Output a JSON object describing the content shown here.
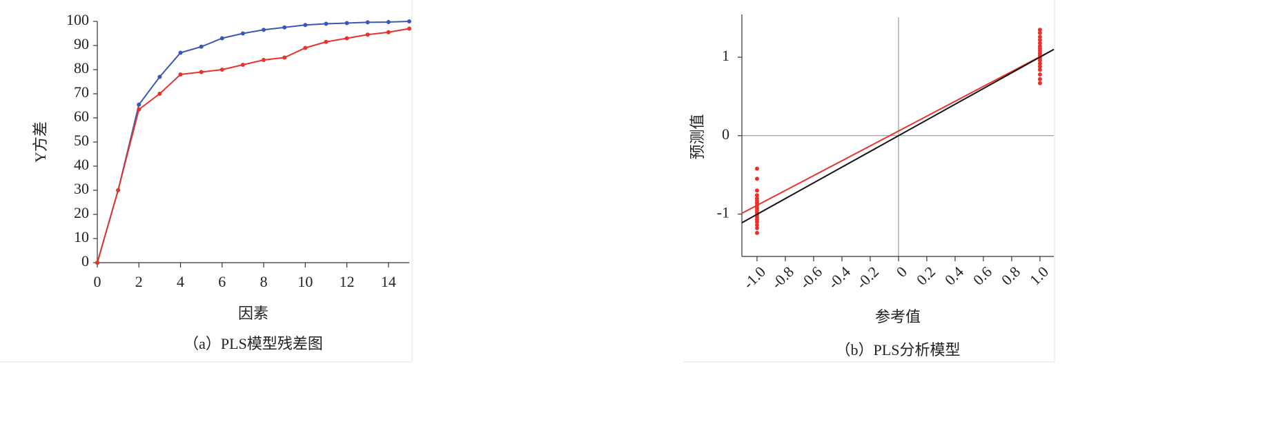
{
  "chart_data": [
    {
      "type": "line",
      "x": [
        0,
        1,
        2,
        3,
        4,
        5,
        6,
        7,
        8,
        9,
        10,
        11,
        12,
        13,
        14,
        15
      ],
      "series": [
        {
          "color": "#3a56b8",
          "values": [
            0,
            30,
            65.5,
            77,
            87,
            89.5,
            93,
            95,
            96.5,
            97.5,
            98.5,
            99,
            99.3,
            99.6,
            99.7,
            100
          ]
        },
        {
          "color": "#e8322b",
          "values": [
            0,
            30,
            63.5,
            70,
            78,
            79,
            80,
            82,
            84,
            85,
            89,
            91.5,
            93,
            94.5,
            95.5,
            97
          ]
        }
      ],
      "xlim": [
        0,
        15
      ],
      "xticks": [
        0,
        2,
        4,
        6,
        8,
        10,
        12,
        14
      ],
      "ylim": [
        0,
        100
      ],
      "yticks": [
        0,
        10,
        20,
        30,
        40,
        50,
        60,
        70,
        80,
        90,
        100
      ],
      "x_label": "因素",
      "y_label": "Y方差",
      "caption": "（a）PLS模型残差图"
    },
    {
      "type": "scatter",
      "series": [
        {
          "color": "#e8322b",
          "x": [
            -1,
            -1,
            -1,
            -1,
            -1,
            -1,
            -1,
            -1,
            -1,
            -1,
            -1,
            -1,
            -1,
            -1,
            -1,
            -1,
            -1,
            -1,
            1,
            1,
            1,
            1,
            1,
            1,
            1,
            1,
            1,
            1,
            1,
            1,
            1,
            1,
            1,
            1,
            1,
            1
          ],
          "values": [
            -1.24,
            -1.18,
            -1.14,
            -1.1,
            -1.07,
            -1.04,
            -1.01,
            -0.98,
            -0.95,
            -0.92,
            -0.89,
            -0.86,
            -0.83,
            -0.8,
            -0.76,
            -0.7,
            -0.55,
            -0.42,
            0.67,
            0.72,
            0.78,
            0.84,
            0.88,
            0.92,
            0.96,
            0.99,
            1.02,
            1.05,
            1.08,
            1.11,
            1.14,
            1.18,
            1.22,
            1.26,
            1.31,
            1.35
          ]
        },
        {
          "color": "#e8322b",
          "style": "line",
          "x": [
            -1.107,
            1.098
          ],
          "values": [
            -0.99,
            1.1
          ]
        },
        {
          "color": "#111111",
          "style": "line",
          "x": [
            -1.107,
            1.098
          ],
          "values": [
            -1.11,
            1.1
          ]
        }
      ],
      "xlim": [
        -1.107,
        1.098
      ],
      "xticks": [
        {
          "value": -1,
          "label": "-1.0"
        },
        -0.8,
        -0.6,
        -0.4,
        -0.2,
        0,
        0.2,
        0.4,
        0.6,
        0.8,
        {
          "value": 1,
          "label": "1.0"
        }
      ],
      "ylim": [
        -1.54,
        1.51
      ],
      "yticks": [
        -1,
        0,
        1
      ],
      "x_label": "参考值",
      "y_label": "预测值",
      "caption": "（b）PLS分析模型"
    }
  ]
}
